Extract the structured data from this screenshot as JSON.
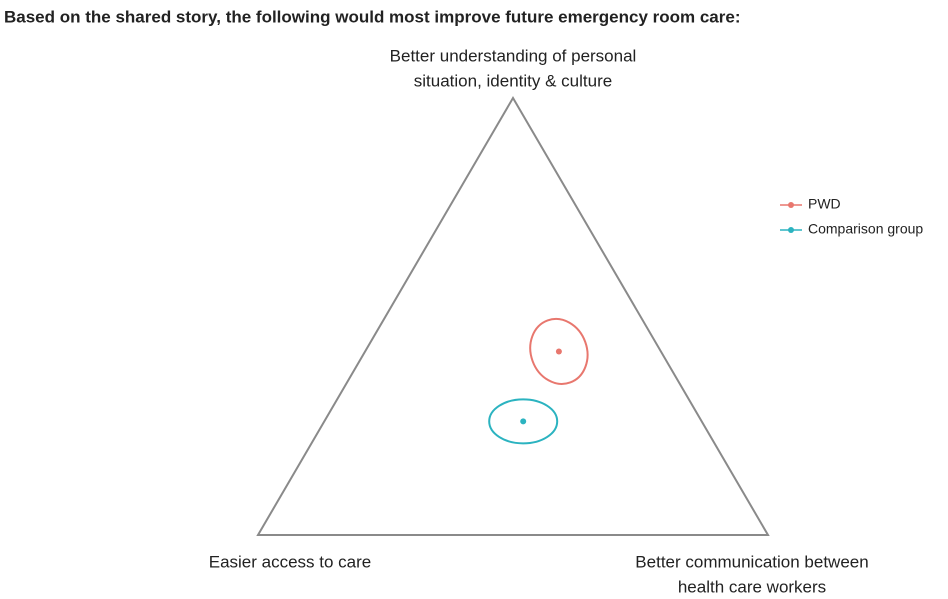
{
  "chart_data": {
    "type": "ternary",
    "title": "Based on the shared story, the following would most improve future emergency room care:",
    "corners": [
      [
        "Better understanding of personal",
        "situation, identity & culture"
      ],
      [
        "Easier access to care"
      ],
      [
        "Better communication between",
        "health care workers"
      ]
    ],
    "series": [
      {
        "name": "PWD",
        "color": "#e8776e",
        "values": [
          42,
          20,
          38
        ]
      },
      {
        "name": "Comparison group",
        "color": "#2bb3c0",
        "values": [
          26,
          35,
          39
        ]
      }
    ],
    "legend": "right"
  }
}
